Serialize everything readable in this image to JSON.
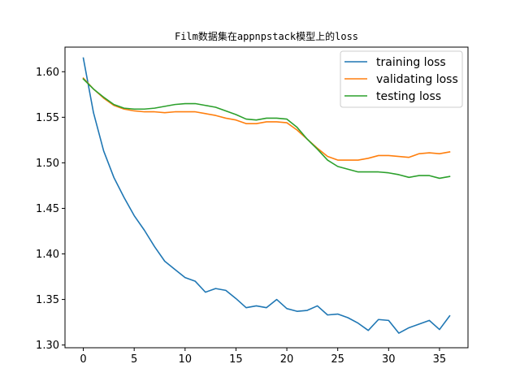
{
  "chart_data": {
    "type": "line",
    "title": "Film数据集在appnpstack模型上的loss",
    "xlabel": "",
    "ylabel": "",
    "xlim": [
      -1.8,
      37.8
    ],
    "ylim": [
      1.297,
      1.627
    ],
    "xticks": [
      0,
      5,
      10,
      15,
      20,
      25,
      30,
      35
    ],
    "yticks": [
      1.3,
      1.35,
      1.4,
      1.45,
      1.5,
      1.55,
      1.6
    ],
    "ytick_labels": [
      "1.30",
      "1.35",
      "1.40",
      "1.45",
      "1.50",
      "1.55",
      "1.60"
    ],
    "grid": false,
    "legend_position": "upper right",
    "x": [
      0,
      1,
      2,
      3,
      4,
      5,
      6,
      7,
      8,
      9,
      10,
      11,
      12,
      13,
      14,
      15,
      16,
      17,
      18,
      19,
      20,
      21,
      22,
      23,
      24,
      25,
      26,
      27,
      28,
      29,
      30,
      31,
      32,
      33,
      34,
      35,
      36
    ],
    "series": [
      {
        "name": "training loss",
        "color": "#1f77b4",
        "values": [
          1.615,
          1.555,
          1.513,
          1.484,
          1.462,
          1.442,
          1.426,
          1.408,
          1.392,
          1.383,
          1.374,
          1.37,
          1.358,
          1.362,
          1.36,
          1.351,
          1.341,
          1.343,
          1.341,
          1.35,
          1.34,
          1.337,
          1.338,
          1.343,
          1.333,
          1.334,
          1.33,
          1.324,
          1.316,
          1.328,
          1.327,
          1.313,
          1.319,
          1.323,
          1.327,
          1.317,
          1.332
        ]
      },
      {
        "name": "validating loss",
        "color": "#ff7f0e",
        "values": [
          1.593,
          1.581,
          1.571,
          1.563,
          1.559,
          1.557,
          1.556,
          1.556,
          1.555,
          1.556,
          1.556,
          1.556,
          1.554,
          1.552,
          1.549,
          1.547,
          1.543,
          1.543,
          1.545,
          1.545,
          1.544,
          1.536,
          1.526,
          1.516,
          1.507,
          1.503,
          1.503,
          1.503,
          1.505,
          1.508,
          1.508,
          1.507,
          1.506,
          1.51,
          1.511,
          1.51,
          1.512
        ]
      },
      {
        "name": "testing loss",
        "color": "#2ca02c",
        "values": [
          1.592,
          1.581,
          1.572,
          1.564,
          1.56,
          1.559,
          1.559,
          1.56,
          1.562,
          1.564,
          1.565,
          1.565,
          1.563,
          1.561,
          1.557,
          1.553,
          1.548,
          1.547,
          1.549,
          1.549,
          1.548,
          1.539,
          1.526,
          1.515,
          1.503,
          1.496,
          1.493,
          1.49,
          1.49,
          1.49,
          1.489,
          1.487,
          1.484,
          1.486,
          1.486,
          1.483,
          1.485
        ]
      }
    ]
  }
}
